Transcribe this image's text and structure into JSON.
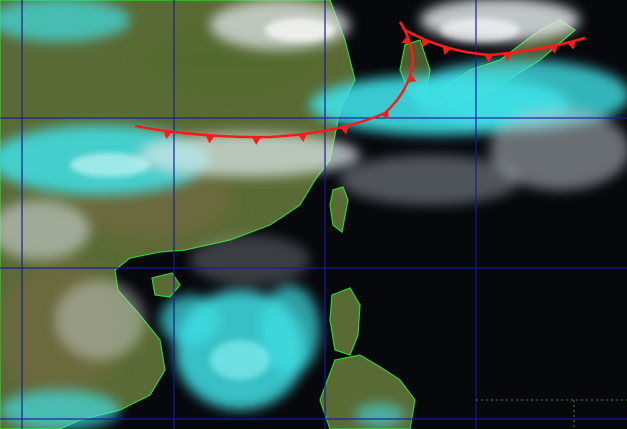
{
  "image": {
    "kind": "satellite-true-color-composite",
    "colors": {
      "ocean": "#07080c",
      "land": "#5a6a34",
      "land_dry": "#7a6a45",
      "coastline": "#2bd62b",
      "cloud_low": "#3fe0e6",
      "cloud_high": "#e6eef0",
      "gridline": "#1a1aa0",
      "front": "#ff1a1a"
    }
  },
  "fronts": [
    {
      "type": "cold-front",
      "symbol": "triangles",
      "color": "#ff1a1a"
    },
    {
      "type": "cold-front",
      "symbol": "triangles",
      "color": "#ff1a1a"
    }
  ],
  "graticule": {
    "visible": true,
    "style": "solid",
    "extra_dotted_box": true
  }
}
